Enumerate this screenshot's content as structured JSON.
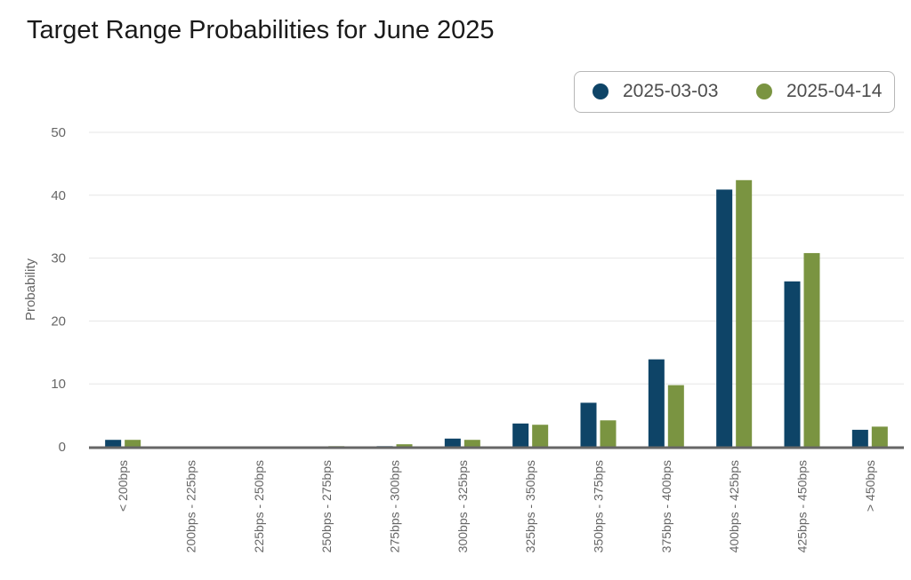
{
  "chart_data": {
    "type": "bar",
    "title": "Target Range Probabilities for June 2025",
    "xlabel": "",
    "ylabel": "Probability",
    "ylim": [
      0,
      50
    ],
    "yticks": [
      0,
      10,
      20,
      30,
      40,
      50
    ],
    "grid": true,
    "legend_position": "top-right",
    "categories": [
      "< 200bps",
      "200bps - 225bps",
      "225bps - 250bps",
      "250bps - 275bps",
      "275bps - 300bps",
      "300bps - 325bps",
      "325bps - 350bps",
      "350bps - 375bps",
      "375bps - 400bps",
      "400bps - 425bps",
      "425bps - 450bps",
      "> 450bps"
    ],
    "series": [
      {
        "name": "2025-03-03",
        "color": "#0e4467",
        "values": [
          1.1,
          0.0,
          0.0,
          0.0,
          0.1,
          1.3,
          3.7,
          7.0,
          13.9,
          40.9,
          26.3,
          2.7
        ]
      },
      {
        "name": "2025-04-14",
        "color": "#7a9441",
        "values": [
          1.1,
          0.0,
          0.0,
          0.1,
          0.4,
          1.1,
          3.5,
          4.2,
          9.8,
          42.4,
          30.8,
          3.2
        ]
      }
    ]
  }
}
